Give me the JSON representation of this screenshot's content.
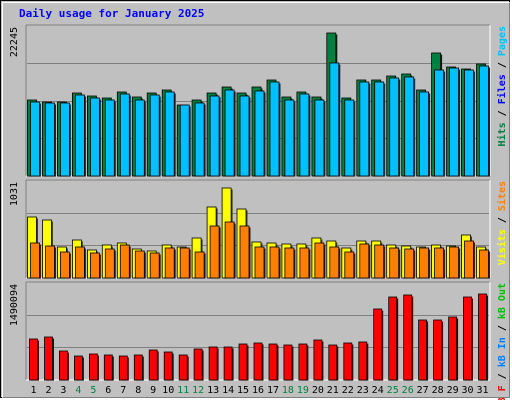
{
  "title": "Daily usage for January 2025",
  "chart_data": {
    "type": "bar",
    "title": "Daily usage for January 2025",
    "categories": [
      "1",
      "2",
      "3",
      "4",
      "5",
      "6",
      "7",
      "8",
      "9",
      "10",
      "11",
      "12",
      "13",
      "14",
      "15",
      "16",
      "17",
      "18",
      "19",
      "20",
      "21",
      "22",
      "23",
      "24",
      "25",
      "26",
      "27",
      "28",
      "29",
      "30",
      "31"
    ],
    "weekend_days": [
      "4",
      "5",
      "11",
      "12",
      "18",
      "19",
      "25",
      "26"
    ],
    "colors": {
      "hits": "#008040",
      "files": "#00c0ff",
      "pages": "#00e0ff",
      "visits": "#ffff00",
      "sites": "#ff8000",
      "kb_in": "#0080ff",
      "kb_out": "#00c000",
      "kb_f": "#ff0000",
      "title": "#0000ff",
      "background": "#c0c0c0",
      "weekday_label": "#000000",
      "weekend_label": "#008040"
    },
    "panels": [
      {
        "name": "hits_files_pages",
        "max_label": "22245",
        "ylim": [
          0,
          22245
        ],
        "legend": [
          {
            "text": "Hits",
            "color": "#008040"
          },
          {
            "text": "Files",
            "color": "#0000ff"
          },
          {
            "text": "Pages",
            "color": "#00c0ff"
          }
        ],
        "legend_separator": " / ",
        "series": [
          {
            "name": "Hits",
            "color": "#008040",
            "values": [
              11800,
              11500,
              11500,
              12900,
              12500,
              12100,
              13000,
              12300,
              12900,
              13400,
              11100,
              11800,
              12900,
              13900,
              12900,
              13900,
              15000,
              12300,
              13000,
              12300,
              22245,
              12100,
              15000,
              15000,
              15500,
              15800,
              13400,
              19200,
              17000,
              16700,
              17500
            ]
          },
          {
            "name": "Files",
            "color": "#00c0ff",
            "values": [
              11500,
              11400,
              11400,
              12600,
              12200,
              11900,
              12700,
              11900,
              12600,
              13000,
              11000,
              11400,
              12500,
              13400,
              12500,
              13300,
              14600,
              11900,
              12800,
              11900,
              17600,
              11900,
              14700,
              14700,
              15200,
              15400,
              13000,
              16500,
              16800,
              16500,
              17100
            ]
          }
        ]
      },
      {
        "name": "visits_sites",
        "max_label": "1031",
        "ylim": [
          0,
          1031
        ],
        "legend": [
          {
            "text": "Visits",
            "color": "#ffff00"
          },
          {
            "text": "Sites",
            "color": "#ff8000"
          }
        ],
        "legend_separator": " / ",
        "series": [
          {
            "name": "Visits",
            "color": "#ffff00",
            "values": [
              700,
              660,
              350,
              440,
              320,
              380,
              400,
              330,
              310,
              380,
              360,
              460,
              810,
              1031,
              790,
              410,
              400,
              390,
              390,
              460,
              420,
              340,
              420,
              420,
              380,
              370,
              360,
              380,
              370,
              490,
              350
            ]
          },
          {
            "name": "Sites",
            "color": "#ff8000",
            "values": [
              400,
              370,
              300,
              350,
              290,
              330,
              380,
              310,
              290,
              340,
              340,
              300,
              600,
              640,
              590,
              360,
              350,
              340,
              340,
              400,
              360,
              300,
              390,
              380,
              340,
              330,
              340,
              340,
              350,
              420,
              320
            ]
          }
        ]
      },
      {
        "name": "kbytes",
        "max_label": "1490094",
        "ylim": [
          0,
          1490094
        ],
        "legend": [
          {
            "text": "kB F",
            "color": "#ff0000"
          },
          {
            "text": "kB In",
            "color": "#0080ff"
          },
          {
            "text": "kB Out",
            "color": "#00c000"
          }
        ],
        "legend_separator": " / ",
        "series": [
          {
            "name": "kB F",
            "color": "#ff0000",
            "values": [
              680000,
              720000,
              480000,
              400000,
              430000,
              420000,
              400000,
              410000,
              500000,
              460000,
              410000,
              510000,
              540000,
              550000,
              600000,
              620000,
              600000,
              580000,
              600000,
              660000,
              580000,
              620000,
              630000,
              1180000,
              1370000,
              1400000,
              990000,
              990000,
              1050000,
              1370000,
              1430000
            ]
          }
        ]
      }
    ]
  }
}
